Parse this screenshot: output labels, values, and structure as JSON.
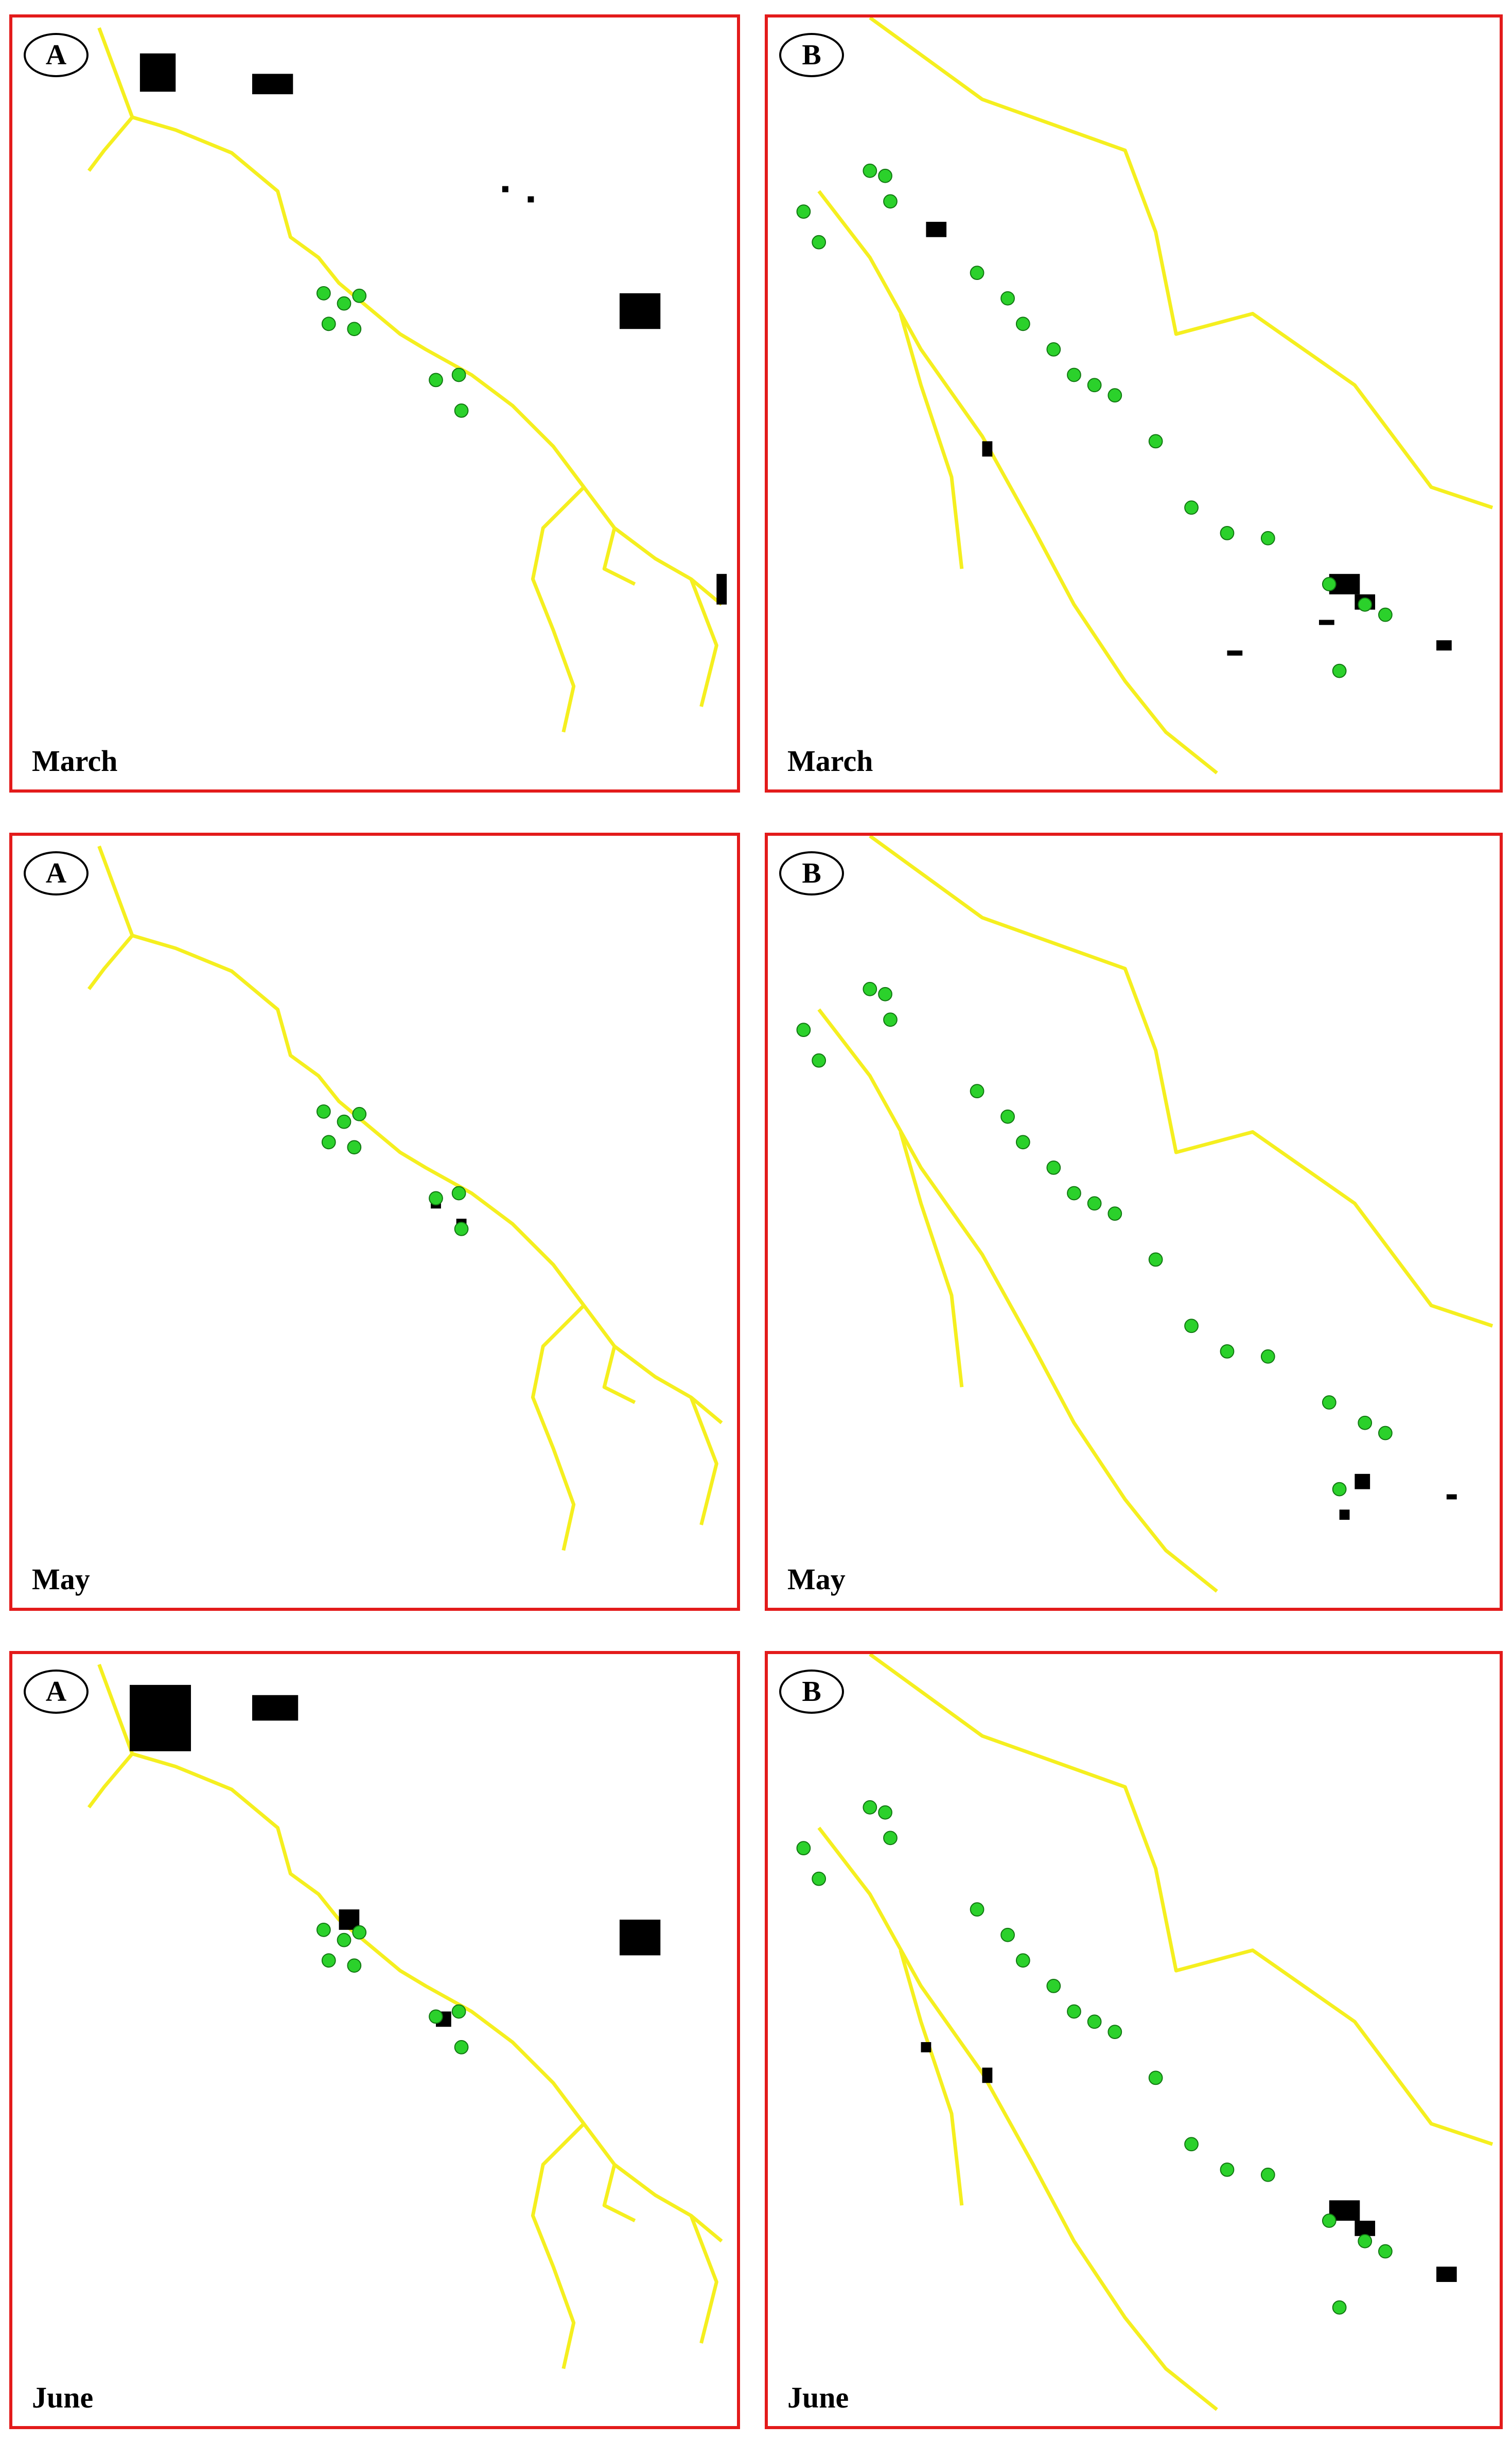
{
  "panels": [
    {
      "letter": "A",
      "month": "March"
    },
    {
      "letter": "B",
      "month": "March"
    },
    {
      "letter": "A",
      "month": "May"
    },
    {
      "letter": "B",
      "month": "May"
    },
    {
      "letter": "A",
      "month": "June"
    },
    {
      "letter": "B",
      "month": "June"
    }
  ],
  "colors": {
    "frame": "#e31b1b",
    "coastline": "#f5ef1f",
    "station_points": "#2bd12b",
    "detections": "#000000"
  }
}
